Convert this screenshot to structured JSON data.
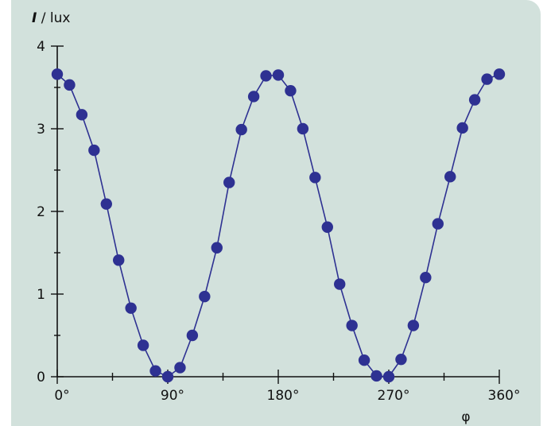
{
  "chart_data": {
    "type": "scatter",
    "ylabel_symbol": "I",
    "ylabel_unit": " / lux",
    "xlabel": "φ",
    "x_ticks": [
      "0°",
      "90°",
      "180°",
      "270°",
      "360°"
    ],
    "y_ticks": [
      "0",
      "1",
      "2",
      "3",
      "4"
    ],
    "xlim": [
      0,
      360
    ],
    "ylim": [
      0,
      4
    ],
    "grid": false,
    "marker_color": "#2e3192",
    "x": [
      0,
      10,
      20,
      30,
      40,
      50,
      60,
      70,
      80,
      90,
      100,
      110,
      120,
      130,
      140,
      150,
      160,
      170,
      180,
      190,
      200,
      210,
      220,
      230,
      240,
      250,
      260,
      270,
      280,
      290,
      300,
      310,
      320,
      330,
      340,
      350,
      360
    ],
    "y": [
      3.66,
      3.53,
      3.17,
      2.74,
      2.09,
      1.41,
      0.83,
      0.38,
      0.07,
      0.0,
      0.11,
      0.5,
      0.97,
      1.56,
      2.35,
      2.99,
      3.39,
      3.64,
      3.65,
      3.46,
      3.0,
      2.41,
      1.81,
      1.12,
      0.62,
      0.2,
      0.01,
      0.0,
      0.21,
      0.62,
      1.2,
      1.85,
      2.42,
      3.01,
      3.35,
      3.6,
      3.66
    ]
  }
}
